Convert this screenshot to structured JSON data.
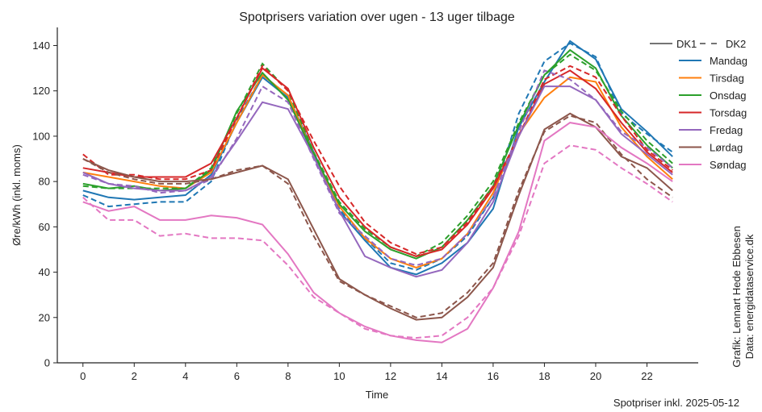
{
  "chart_data": {
    "type": "line",
    "title": "Spotprisers variation over ugen - 13 uger tilbage",
    "xlabel": "Time",
    "ylabel": "Øre/kWh (inkl. moms)",
    "xlim": [
      -1,
      24
    ],
    "ylim": [
      0,
      148
    ],
    "xticks": [
      0,
      2,
      4,
      6,
      8,
      10,
      12,
      14,
      16,
      18,
      20,
      22
    ],
    "yticks": [
      0,
      20,
      40,
      60,
      80,
      100,
      120,
      140
    ],
    "x": [
      0,
      1,
      2,
      3,
      4,
      5,
      6,
      7,
      8,
      9,
      10,
      11,
      12,
      13,
      14,
      15,
      16,
      17,
      18,
      19,
      20,
      21,
      22,
      23
    ],
    "grid": false,
    "legend_position": "top-right",
    "style_legend": [
      {
        "label": "DK1",
        "dash": "solid"
      },
      {
        "label": "DK2",
        "dash": "dashed"
      }
    ],
    "series": [
      {
        "name": "Mandag",
        "color": "#1f77b4",
        "dk1": [
          76,
          73,
          72,
          73,
          74,
          83,
          106,
          126,
          117,
          91,
          67,
          54,
          42,
          39,
          44,
          53,
          68,
          104,
          124,
          142,
          134,
          112,
          102,
          91
        ],
        "dk2": [
          74,
          69,
          70,
          71,
          71,
          80,
          107,
          127,
          118,
          93,
          68,
          55,
          44,
          41,
          46,
          56,
          73,
          110,
          133,
          141,
          135,
          110,
          101,
          93
        ]
      },
      {
        "name": "Tirsdag",
        "color": "#ff7f0e",
        "dk1": [
          84,
          82,
          80,
          78,
          77,
          84,
          106,
          127,
          118,
          92,
          69,
          55,
          46,
          42,
          46,
          57,
          75,
          101,
          117,
          126,
          124,
          104,
          91,
          81
        ]
      },
      {
        "name": "Onsdag",
        "color": "#2ca02c",
        "dk1": [
          79,
          77,
          78,
          76,
          77,
          85,
          111,
          128,
          116,
          92,
          70,
          58,
          50,
          46,
          51,
          63,
          78,
          105,
          127,
          138,
          130,
          109,
          96,
          86
        ],
        "dk2": [
          78,
          77,
          77,
          77,
          77,
          86,
          110,
          132,
          120,
          93,
          71,
          59,
          51,
          47,
          53,
          65,
          80,
          106,
          127,
          136,
          129,
          111,
          98,
          88
        ]
      },
      {
        "name": "Torsdag",
        "color": "#d62728",
        "dk1": [
          86,
          84,
          82,
          82,
          82,
          88,
          108,
          130,
          121,
          95,
          73,
          60,
          51,
          47,
          50,
          61,
          77,
          100,
          123,
          129,
          121,
          106,
          93,
          84
        ],
        "dk2": [
          92,
          83,
          83,
          81,
          81,
          85,
          108,
          131,
          120,
          98,
          78,
          62,
          53,
          48,
          51,
          62,
          78,
          100,
          125,
          131,
          126,
          109,
          94,
          85
        ]
      },
      {
        "name": "Fredag",
        "color": "#9467bd",
        "dk1": [
          84,
          79,
          77,
          76,
          76,
          82,
          98,
          115,
          112,
          91,
          67,
          47,
          42,
          38,
          41,
          53,
          71,
          100,
          122,
          122,
          116,
          101,
          92,
          83
        ],
        "dk2": [
          83,
          79,
          78,
          75,
          76,
          81,
          99,
          122,
          115,
          90,
          66,
          56,
          46,
          43,
          46,
          57,
          73,
          102,
          129,
          125,
          116,
          102,
          95,
          86
        ]
      },
      {
        "name": "Lørdag",
        "color": "#8c564b",
        "dk1": [
          90,
          85,
          82,
          80,
          80,
          81,
          84,
          87,
          81,
          59,
          37,
          30,
          24,
          19,
          20,
          29,
          42,
          74,
          103,
          110,
          104,
          91,
          86,
          76
        ],
        "dk2": [
          90,
          84,
          81,
          79,
          79,
          81,
          85,
          87,
          79,
          56,
          36,
          30,
          25,
          20,
          22,
          31,
          44,
          76,
          102,
          109,
          106,
          92,
          81,
          73
        ]
      },
      {
        "name": "Søndag",
        "color": "#e377c2",
        "dk1": [
          71,
          67,
          69,
          63,
          63,
          65,
          64,
          61,
          48,
          31,
          22,
          16,
          12,
          10,
          9,
          15,
          33,
          58,
          98,
          106,
          104,
          95,
          88,
          80
        ],
        "dk2": [
          73,
          63,
          63,
          56,
          57,
          55,
          55,
          54,
          43,
          29,
          22,
          15,
          12,
          11,
          12,
          20,
          33,
          56,
          88,
          96,
          94,
          86,
          79,
          71
        ]
      }
    ]
  },
  "side_text": {
    "line1": "Grafik: Lennart Hede Ebbesen",
    "line2": "Data: energidataservice.dk"
  },
  "footer": "Spotpriser inkl. 2025-05-12"
}
